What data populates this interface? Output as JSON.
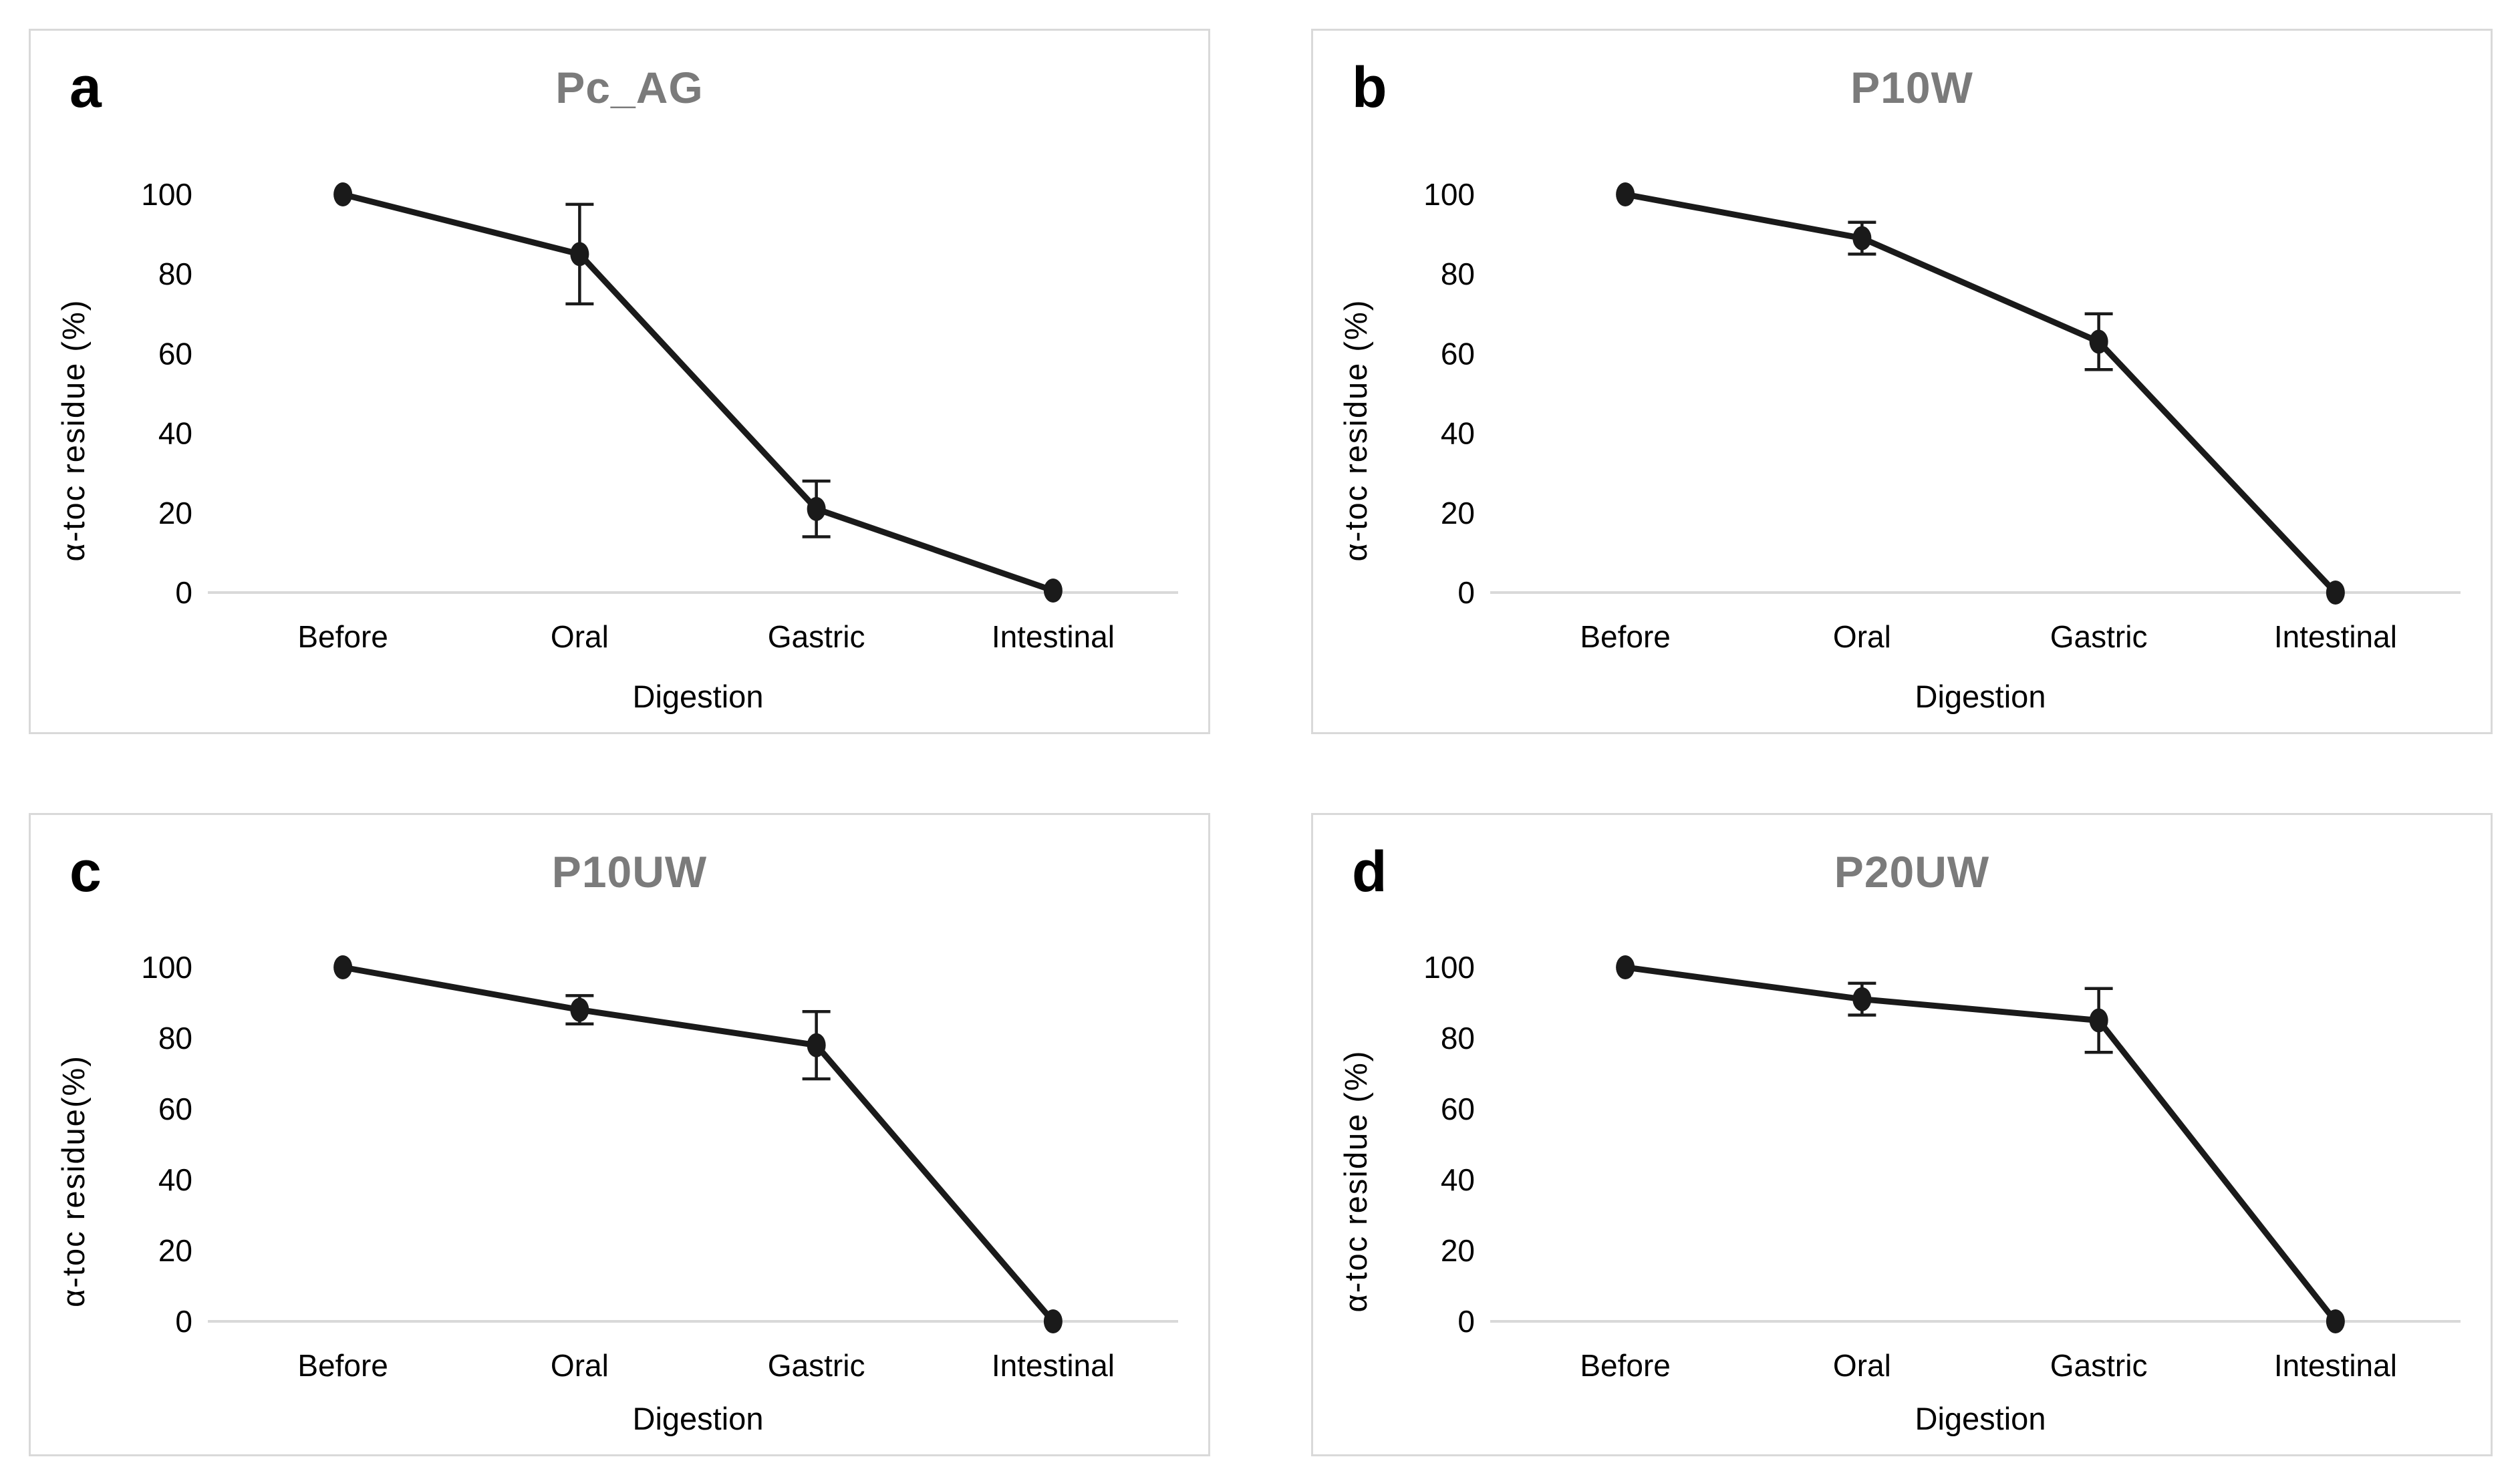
{
  "figure": {
    "background": "#ffffff",
    "panel_border_color": "#d9d9d9",
    "zero_line_color": "#d9d9d9",
    "title_color": "#7b7b7b",
    "series_color": "#1a1a1a"
  },
  "chart_data": [
    {
      "type": "line",
      "panel_letter": "a",
      "title": "Pc_AG",
      "xlabel": "Digestion",
      "ylabel": "α-toc residue (%)",
      "categories": [
        "Before",
        "Oral",
        "Gastric",
        "Intestinal"
      ],
      "values": [
        100,
        85,
        21,
        0.5
      ],
      "errors": [
        0,
        12.5,
        7,
        0
      ],
      "yticks": [
        0,
        20,
        40,
        60,
        80,
        100
      ],
      "ylim": [
        0,
        107
      ],
      "grid": false,
      "legend": false,
      "marker": "filled-ellipse",
      "error_bars": true
    },
    {
      "type": "line",
      "panel_letter": "b",
      "title": "P10W",
      "xlabel": "Digestion",
      "ylabel": "α-toc residue (%)",
      "categories": [
        "Before",
        "Oral",
        "Gastric",
        "Intestinal"
      ],
      "values": [
        100,
        89,
        63,
        0
      ],
      "errors": [
        0,
        4,
        7,
        0
      ],
      "yticks": [
        0,
        20,
        40,
        60,
        80,
        100
      ],
      "ylim": [
        0,
        107
      ],
      "grid": false,
      "legend": false,
      "marker": "filled-ellipse",
      "error_bars": true
    },
    {
      "type": "line",
      "panel_letter": "c",
      "title": "P10UW",
      "xlabel": "Digestion",
      "ylabel": "α-toc residue(%)",
      "categories": [
        "Before",
        "Oral",
        "Gastric",
        "Intestinal"
      ],
      "values": [
        100,
        88,
        78,
        0
      ],
      "errors": [
        0,
        4,
        9.5,
        0
      ],
      "yticks": [
        0,
        20,
        40,
        60,
        80,
        100
      ],
      "ylim": [
        0,
        107
      ],
      "grid": false,
      "legend": false,
      "marker": "filled-ellipse",
      "error_bars": true
    },
    {
      "type": "line",
      "panel_letter": "d",
      "title": "P20UW",
      "xlabel": "Digestion",
      "ylabel": "α-toc residue (%)",
      "categories": [
        "Before",
        "Oral",
        "Gastric",
        "Intestinal"
      ],
      "values": [
        100,
        91,
        85,
        0
      ],
      "errors": [
        0,
        4.5,
        9,
        0
      ],
      "yticks": [
        0,
        20,
        40,
        60,
        80,
        100
      ],
      "ylim": [
        0,
        107
      ],
      "grid": false,
      "legend": false,
      "marker": "filled-ellipse",
      "error_bars": true
    }
  ]
}
